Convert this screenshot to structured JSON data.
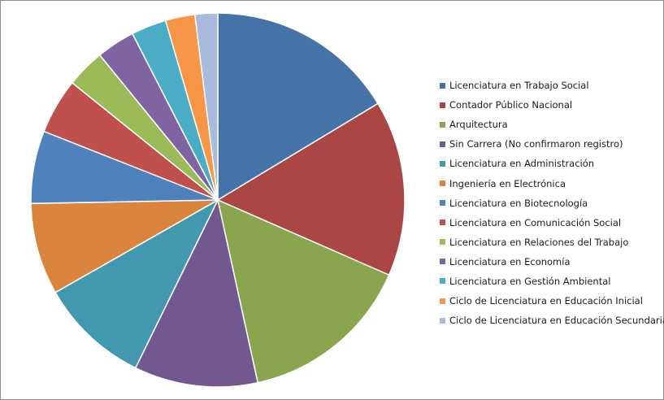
{
  "chart_data": {
    "type": "pie",
    "title": "",
    "categories": [
      "Licenciatura en Trabajo Social",
      "Contador Público Nacional",
      "Arquitectura",
      "Sin Carrera (No confirmaron registro)",
      "Licenciatura en Administración",
      "Ingeniería en Electrónica",
      "Licenciatura en Biotecnología",
      "Licenciatura en Comunicación Social",
      "Licenciatura en Relaciones del Trabajo",
      "Licenciatura en Economía",
      "Licenciatura en Gestión Ambiental",
      "Ciclo de Licenciatura en Educación Inicial",
      "Ciclo de Licenciatura en Educación Secundaria"
    ],
    "values": [
      16.7,
      15.5,
      15.3,
      10.9,
      9.7,
      8.1,
      6.4,
      4.9,
      3.4,
      3.4,
      3.1,
      2.6,
      2.0
    ],
    "colors": [
      "#4572A7",
      "#AA4643",
      "#89A54E",
      "#71588F",
      "#4198AF",
      "#DB843D",
      "#4F81BD",
      "#C0504D",
      "#9BBB59",
      "#8064A2",
      "#4BACC6",
      "#F79646",
      "#AABADC"
    ],
    "legend_position": "right",
    "start_angle": "12 o'clock, clockwise"
  }
}
